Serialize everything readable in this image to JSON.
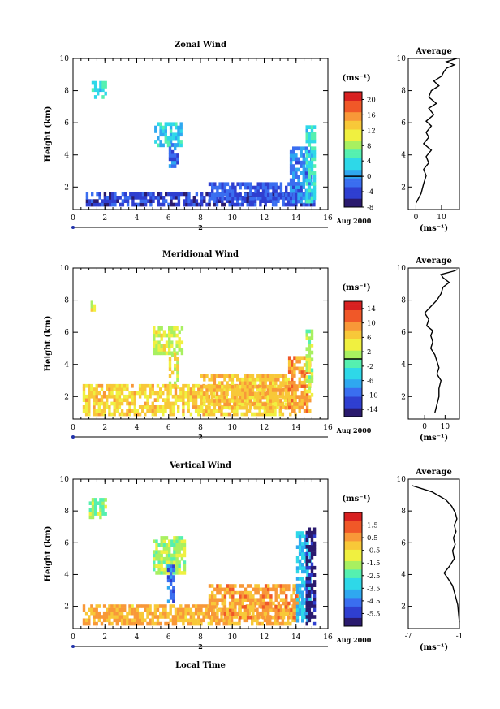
{
  "figure": {
    "date_label": "Aug 2000",
    "day_label": "2",
    "time_axis_label": "Local Time",
    "average_title": "Average"
  },
  "colormap": [
    "#2a1a6e",
    "#2f3fd0",
    "#3a6ef0",
    "#2fa8f0",
    "#2ed8e8",
    "#55f0b0",
    "#a8f060",
    "#f0f040",
    "#f8c838",
    "#f89838",
    "#f05828",
    "#d82020"
  ],
  "chart_data": [
    {
      "type": "heatmap",
      "title": "Zonal Wind",
      "xlabel": "",
      "ylabel": "Height (km)",
      "xlim": [
        0,
        16
      ],
      "ylim": [
        0.6,
        10
      ],
      "xticks": [
        "0",
        "2",
        "4",
        "6",
        "8",
        "10",
        "12",
        "14",
        "16"
      ],
      "yticks": [
        "2",
        "4",
        "6",
        "8",
        "10"
      ],
      "colorbar": {
        "label": "(ms⁻¹)",
        "min": -8,
        "max": 22,
        "ticks": [
          "20",
          "16",
          "12",
          "8",
          "4",
          "0",
          "-4",
          "-8"
        ],
        "zero_line": 0
      },
      "regions": [
        {
          "x": [
            1.0,
            2.0
          ],
          "y": [
            7.5,
            8.6
          ],
          "v": 4
        },
        {
          "x": [
            5.1,
            6.8
          ],
          "y": [
            4.5,
            5.9
          ],
          "v": 3
        },
        {
          "x": [
            6.0,
            6.6
          ],
          "y": [
            3.2,
            4.6
          ],
          "v": -2
        },
        {
          "x": [
            0.8,
            15.2
          ],
          "y": [
            0.8,
            1.6
          ],
          "v": -4
        },
        {
          "x": [
            8.5,
            14.0
          ],
          "y": [
            1.2,
            2.3
          ],
          "v": -3
        },
        {
          "x": [
            13.6,
            15.0
          ],
          "y": [
            1.0,
            4.5
          ],
          "v": -1
        },
        {
          "x": [
            14.6,
            15.1
          ],
          "y": [
            1.0,
            5.8
          ],
          "v": 4
        }
      ],
      "profile": {
        "title": "Average",
        "xlabel": "(ms⁻¹)",
        "xlim": [
          -3,
          17
        ],
        "ylim": [
          0.6,
          10
        ],
        "xticks": [
          "0",
          "10"
        ],
        "yticks": [
          "2",
          "4",
          "6",
          "8",
          "10"
        ],
        "x": [
          0,
          2,
          3,
          4,
          3,
          5,
          4,
          6,
          3,
          5,
          4,
          6,
          4,
          7,
          5,
          8,
          5,
          6,
          9,
          7,
          10,
          11,
          12,
          15,
          12,
          16
        ],
        "y": [
          1.0,
          1.6,
          2.2,
          2.7,
          3.1,
          3.5,
          3.9,
          4.3,
          4.7,
          5.1,
          5.4,
          5.8,
          6.1,
          6.5,
          6.9,
          7.2,
          7.6,
          8.0,
          8.3,
          8.6,
          8.9,
          9.2,
          9.4,
          9.6,
          9.8,
          10.0
        ]
      }
    },
    {
      "type": "heatmap",
      "title": "Meridional Wind",
      "xlabel": "",
      "ylabel": "Height (km)",
      "xlim": [
        0,
        16
      ],
      "ylim": [
        0.6,
        10
      ],
      "xticks": [
        "0",
        "2",
        "4",
        "6",
        "8",
        "10",
        "12",
        "14",
        "16"
      ],
      "yticks": [
        "2",
        "4",
        "6",
        "8",
        "10"
      ],
      "colorbar": {
        "label": "(ms⁻¹)",
        "min": -16,
        "max": 16,
        "ticks": [
          "14",
          "10",
          "6",
          "2",
          "-2",
          "-6",
          "-10",
          "-14"
        ],
        "zero_line": 0
      },
      "regions": [
        {
          "x": [
            1.1,
            1.4
          ],
          "y": [
            7.3,
            7.9
          ],
          "v": 3
        },
        {
          "x": [
            5.0,
            6.9
          ],
          "y": [
            4.6,
            6.2
          ],
          "v": 3
        },
        {
          "x": [
            6.0,
            6.6
          ],
          "y": [
            2.5,
            4.6
          ],
          "v": 4
        },
        {
          "x": [
            0.6,
            14.0
          ],
          "y": [
            0.8,
            2.6
          ],
          "v": 6
        },
        {
          "x": [
            8.0,
            13.5
          ],
          "y": [
            1.2,
            3.2
          ],
          "v": 7
        },
        {
          "x": [
            13.5,
            14.8
          ],
          "y": [
            1.0,
            4.5
          ],
          "v": 9
        },
        {
          "x": [
            14.6,
            15.0
          ],
          "y": [
            2.0,
            6.0
          ],
          "v": 2
        }
      ],
      "profile": {
        "title": "Average",
        "xlabel": "(ms⁻¹)",
        "xlim": [
          -8,
          17
        ],
        "ylim": [
          0.6,
          10
        ],
        "xticks": [
          "0",
          "10"
        ],
        "yticks": [
          "2",
          "4",
          "6",
          "8",
          "10"
        ],
        "x": [
          5,
          6,
          7,
          7,
          8,
          6,
          7,
          6,
          5,
          3,
          4,
          3,
          4,
          1,
          2,
          0,
          3,
          6,
          8,
          9,
          12,
          9,
          8,
          14,
          16
        ],
        "y": [
          1.0,
          1.5,
          2.0,
          2.5,
          3.0,
          3.4,
          3.8,
          4.2,
          4.6,
          5.0,
          5.4,
          5.8,
          6.1,
          6.4,
          6.8,
          7.2,
          7.6,
          8.0,
          8.4,
          8.8,
          9.1,
          9.4,
          9.6,
          9.8,
          9.9
        ]
      }
    },
    {
      "type": "heatmap",
      "title": "Vertical Wind",
      "xlabel": "Local Time",
      "ylabel": "Height (km)",
      "xlim": [
        0,
        16
      ],
      "ylim": [
        0.6,
        10
      ],
      "xticks": [
        "0",
        "2",
        "4",
        "6",
        "8",
        "10",
        "12",
        "14",
        "16"
      ],
      "yticks": [
        "2",
        "4",
        "6",
        "8",
        "10"
      ],
      "colorbar": {
        "label": "(ms⁻¹)",
        "min": -6.5,
        "max": 2.5,
        "ticks": [
          "1.5",
          "0.5",
          "-0.5",
          "-1.5",
          "-2.5",
          "-3.5",
          "-4.5",
          "-5.5"
        ],
        "zero_line": null
      },
      "regions": [
        {
          "x": [
            1.0,
            2.0
          ],
          "y": [
            7.5,
            8.7
          ],
          "v": -1.8
        },
        {
          "x": [
            5.0,
            7.0
          ],
          "y": [
            4.0,
            6.2
          ],
          "v": -1.6
        },
        {
          "x": [
            5.9,
            6.3
          ],
          "y": [
            2.2,
            4.5
          ],
          "v": -4.5
        },
        {
          "x": [
            0.6,
            14.0
          ],
          "y": [
            0.8,
            2.0
          ],
          "v": 0.2
        },
        {
          "x": [
            8.5,
            14.2
          ],
          "y": [
            1.2,
            3.4
          ],
          "v": 0.5
        },
        {
          "x": [
            14.0,
            14.9
          ],
          "y": [
            1.0,
            6.5
          ],
          "v": -3.5
        },
        {
          "x": [
            14.6,
            15.2
          ],
          "y": [
            0.8,
            6.8
          ],
          "v": -6.2
        }
      ],
      "profile": {
        "title": "Average",
        "xlabel": "(ms⁻¹)",
        "xlim": [
          -7,
          -1
        ],
        "ylim": [
          0.6,
          10
        ],
        "xticks": [
          "-7",
          "-1"
        ],
        "yticks": [
          "2",
          "4",
          "6",
          "8",
          "10"
        ],
        "x": [
          -1.0,
          -1.1,
          -1.2,
          -1.5,
          -1.8,
          -2.4,
          -2.8,
          -2.2,
          -1.6,
          -1.8,
          -1.5,
          -1.7,
          -1.4,
          -1.6,
          -1.3,
          -1.5,
          -1.9,
          -2.6,
          -4.2,
          -6.6
        ],
        "y": [
          1.0,
          1.5,
          2.1,
          2.7,
          3.3,
          3.8,
          4.1,
          4.5,
          5.0,
          5.5,
          5.9,
          6.3,
          6.7,
          7.1,
          7.5,
          7.9,
          8.3,
          8.7,
          9.2,
          9.6
        ]
      }
    }
  ]
}
